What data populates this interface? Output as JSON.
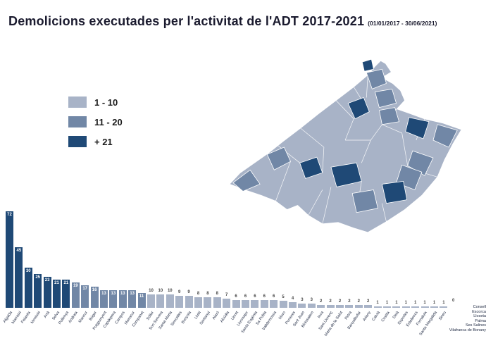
{
  "title": "Demolicions executades per l'activitat de l'ADT  2017-2021",
  "subtitle": "(01/01/2017 - 30/06/2021)",
  "legend": {
    "items": [
      {
        "label": "1 - 10",
        "color": "#a8b3c7"
      },
      {
        "label": "11 - 20",
        "color": "#7187a6"
      },
      {
        "label": "+ 21",
        "color": "#1f4976"
      }
    ]
  },
  "chart_data": {
    "type": "bar",
    "title": "Demolicions executades per l'activitat de l'ADT 2017-2021",
    "xlabel": "",
    "ylabel": "",
    "ylim": [
      0,
      80
    ],
    "grid": false,
    "legend_position": "left",
    "bins": [
      {
        "label": "1 - 10",
        "min": 1,
        "max": 10,
        "color": "#a8b3c7"
      },
      {
        "label": "11 - 20",
        "min": 11,
        "max": 20,
        "color": "#7187a6"
      },
      {
        "label": "+ 21",
        "min": 21,
        "max": 999,
        "color": "#1f4976"
      }
    ],
    "categories": [
      "Algaida",
      "Marratxí",
      "Felanitx",
      "Montuïri",
      "Artà",
      "Selva",
      "Pollença",
      "Andratx",
      "Mancor",
      "Búger",
      "Puigpunyent",
      "Capdepera",
      "Campos",
      "Manacor",
      "Campanet",
      "Sóller",
      "Son Servera",
      "Santa Maria",
      "Sencelles",
      "Bunyola",
      "Llubí",
      "Santanyí",
      "Alaró",
      "Alcúdia",
      "Lloret",
      "Llucmajor",
      "Santa Eugènia",
      "Sa Pobla",
      "Valldemossa",
      "Muro",
      "Porreres",
      "Sant Joan",
      "Binissalem",
      "Inca",
      "Sant Llorenç",
      "Maria de la Salut",
      "Petra",
      "Banyalbufar",
      "Ariany",
      "Calvià",
      "Costitx",
      "Deià",
      "Esporles",
      "Estellencs",
      "Fornalutx",
      "Santa Margalida",
      "Sineu"
    ],
    "values": [
      72,
      45,
      30,
      25,
      23,
      21,
      21,
      19,
      17,
      16,
      13,
      13,
      13,
      13,
      11,
      10,
      10,
      10,
      9,
      9,
      8,
      8,
      8,
      7,
      6,
      6,
      6,
      6,
      6,
      5,
      4,
      3,
      3,
      2,
      2,
      2,
      2,
      2,
      2,
      1,
      1,
      1,
      1,
      1,
      1,
      1,
      1
    ],
    "zero_label": "0",
    "zero_categories": [
      "Consell",
      "Escorca",
      "Lloseta",
      "Palma",
      "Ses Salines",
      "Vilafranca de Bonany"
    ]
  }
}
